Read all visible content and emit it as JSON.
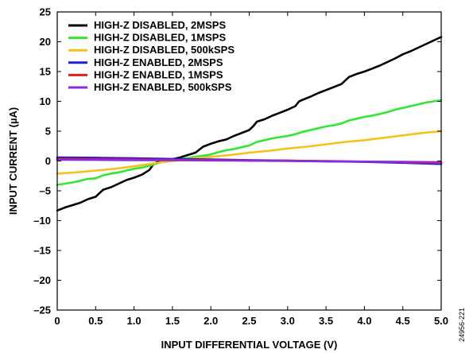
{
  "chart_data": {
    "type": "line",
    "title": "",
    "xlabel": "INPUT DIFFERENTIAL VOLTAGE (V)",
    "ylabel": "INPUT CURRENT (µA)",
    "xlim": [
      0,
      5
    ],
    "ylim": [
      -25,
      25
    ],
    "x_ticks": [
      0,
      0.5,
      1,
      1.5,
      2,
      2.5,
      3,
      3.5,
      4,
      4.5,
      5
    ],
    "x_tick_labels": [
      "0",
      "0.5",
      "1.0",
      "1.5",
      "2.0",
      "2.5",
      "3.0",
      "3.5",
      "4.0",
      "4.5",
      "5.0"
    ],
    "y_ticks": [
      -25,
      -20,
      -15,
      -10,
      -5,
      0,
      5,
      10,
      15,
      20,
      25
    ],
    "y_tick_labels": [
      "–25",
      "–20",
      "–15",
      "–10",
      "–5",
      "0",
      "5",
      "10",
      "15",
      "20",
      "25"
    ],
    "grid": false,
    "legend_position": "top-left",
    "figure_id": "24956-221",
    "series": [
      {
        "name": "HIGH-Z DISABLED, 2MSPS",
        "color": "#000000",
        "x": [
          0,
          0.1,
          0.2,
          0.3,
          0.4,
          0.5,
          0.55,
          0.6,
          0.7,
          0.8,
          0.9,
          1.0,
          1.1,
          1.2,
          1.25,
          1.3,
          1.4,
          1.5,
          1.6,
          1.7,
          1.8,
          1.9,
          2.0,
          2.1,
          2.2,
          2.3,
          2.4,
          2.5,
          2.55,
          2.6,
          2.7,
          2.8,
          2.9,
          3.0,
          3.1,
          3.15,
          3.2,
          3.3,
          3.4,
          3.5,
          3.6,
          3.7,
          3.8,
          3.9,
          4.0,
          4.1,
          4.2,
          4.3,
          4.4,
          4.5,
          4.6,
          4.7,
          4.8,
          4.9,
          5.0
        ],
        "y": [
          -8.3,
          -7.8,
          -7.4,
          -7.0,
          -6.4,
          -6.0,
          -5.4,
          -4.8,
          -4.4,
          -3.8,
          -3.2,
          -2.8,
          -2.3,
          -1.5,
          -0.6,
          -0.2,
          0.1,
          0.3,
          0.6,
          1.0,
          1.4,
          2.4,
          2.9,
          3.3,
          3.6,
          4.2,
          4.7,
          5.2,
          5.8,
          6.6,
          7.0,
          7.6,
          8.1,
          8.6,
          9.2,
          10.0,
          10.3,
          10.8,
          11.4,
          11.9,
          12.4,
          12.9,
          14.1,
          14.6,
          15.0,
          15.5,
          16.0,
          16.6,
          17.2,
          17.9,
          18.4,
          19.0,
          19.6,
          20.2,
          20.8
        ]
      },
      {
        "name": "HIGH-Z DISABLED, 1MSPS",
        "color": "#33e633",
        "x": [
          0,
          0.1,
          0.2,
          0.3,
          0.4,
          0.5,
          0.6,
          0.7,
          0.8,
          0.9,
          1.0,
          1.1,
          1.2,
          1.3,
          1.4,
          1.5,
          1.6,
          1.7,
          1.8,
          1.9,
          2.0,
          2.1,
          2.2,
          2.3,
          2.4,
          2.5,
          2.6,
          2.7,
          2.8,
          2.9,
          3.0,
          3.1,
          3.2,
          3.3,
          3.4,
          3.5,
          3.6,
          3.7,
          3.8,
          3.9,
          4.0,
          4.1,
          4.2,
          4.3,
          4.4,
          4.5,
          4.6,
          4.7,
          4.8,
          4.9,
          5.0
        ],
        "y": [
          -4.0,
          -3.8,
          -3.6,
          -3.3,
          -3.0,
          -2.9,
          -2.4,
          -2.1,
          -1.9,
          -1.6,
          -1.3,
          -1.1,
          -0.8,
          -0.4,
          0.0,
          0.1,
          0.3,
          0.5,
          0.7,
          0.9,
          1.1,
          1.5,
          1.8,
          2.0,
          2.3,
          2.6,
          3.2,
          3.5,
          3.8,
          4.0,
          4.2,
          4.5,
          4.9,
          5.2,
          5.5,
          5.8,
          6.0,
          6.3,
          6.8,
          7.1,
          7.4,
          7.6,
          7.9,
          8.2,
          8.6,
          8.9,
          9.2,
          9.5,
          9.8,
          10.0,
          10.2
        ]
      },
      {
        "name": "HIGH-Z DISABLED, 500kSPS",
        "color": "#f5c21b",
        "x": [
          0,
          0.25,
          0.5,
          0.75,
          1.0,
          1.25,
          1.5,
          1.75,
          2.0,
          2.25,
          2.5,
          2.75,
          3.0,
          3.25,
          3.5,
          3.75,
          4.0,
          4.25,
          4.5,
          4.75,
          5.0
        ],
        "y": [
          -2.1,
          -1.9,
          -1.6,
          -1.3,
          -0.9,
          -0.4,
          0.0,
          0.4,
          0.7,
          1.0,
          1.4,
          1.7,
          2.1,
          2.4,
          2.8,
          3.2,
          3.5,
          3.9,
          4.3,
          4.7,
          5.0
        ]
      },
      {
        "name": "HIGH-Z ENABLED, 2MSPS",
        "color": "#1f1fd9",
        "x": [
          0,
          0.5,
          1.0,
          1.5,
          2.0,
          2.5,
          3.0,
          3.5,
          4.0,
          4.5,
          5.0
        ],
        "y": [
          0.6,
          0.55,
          0.45,
          0.35,
          0.25,
          0.15,
          0.05,
          -0.05,
          -0.15,
          -0.3,
          -0.5
        ]
      },
      {
        "name": "HIGH-Z ENABLED, 1MSPS",
        "color": "#e01f1f",
        "x": [
          0,
          0.5,
          1.0,
          1.5,
          2.0,
          2.5,
          3.0,
          3.5,
          4.0,
          4.5,
          5.0
        ],
        "y": [
          0.35,
          0.3,
          0.25,
          0.2,
          0.15,
          0.1,
          0.05,
          0.0,
          -0.1,
          -0.2,
          -0.3
        ]
      },
      {
        "name": "HIGH-Z ENABLED, 500kSPS",
        "color": "#8a2be2",
        "x": [
          0,
          0.5,
          1.0,
          1.5,
          2.0,
          2.5,
          3.0,
          3.5,
          4.0,
          4.5,
          5.0
        ],
        "y": [
          0.2,
          0.18,
          0.15,
          0.12,
          0.1,
          0.05,
          0.0,
          -0.05,
          -0.1,
          -0.15,
          -0.2
        ]
      }
    ]
  }
}
